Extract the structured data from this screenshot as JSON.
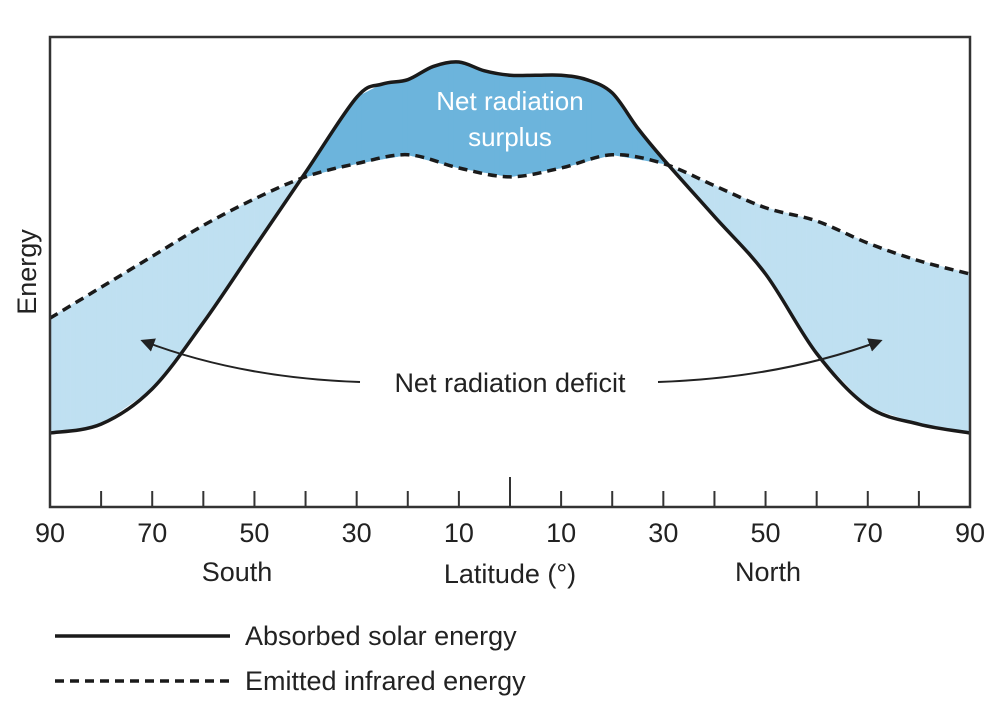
{
  "colors": {
    "surplus_fill": "#6cb4dc",
    "deficit_fill": "#bfe0f1",
    "line": "#1a1a1a",
    "frame": "#333333",
    "surplus_text": "#ffffff"
  },
  "chart_data": {
    "type": "line",
    "title": "",
    "xlabel": "Latitude (°)",
    "ylabel": "Energy",
    "x_tick_labels": [
      "90",
      "70",
      "50",
      "30",
      "10",
      "10",
      "30",
      "50",
      "70",
      "90"
    ],
    "x_region_labels": {
      "south": "South",
      "north": "North"
    },
    "xlim": [
      -90,
      90
    ],
    "ylim": [
      0,
      100
    ],
    "grid": false,
    "legend_placement": "bottom-left",
    "series": [
      {
        "name": "Absorbed solar energy",
        "style": "solid",
        "x": [
          -90,
          -80,
          -70,
          -60,
          -50,
          -40,
          -30,
          -25,
          -20,
          -15,
          -10,
          -5,
          0,
          5,
          10,
          15,
          20,
          25,
          30,
          40,
          50,
          60,
          70,
          80,
          90
        ],
        "y": [
          16,
          18,
          26,
          41,
          58,
          75,
          92,
          95,
          96,
          99,
          100,
          98,
          97,
          97,
          97,
          96,
          93,
          85,
          78,
          65,
          52,
          34,
          22,
          18,
          16
        ]
      },
      {
        "name": "Emitted infrared energy",
        "style": "dashed",
        "x": [
          -90,
          -80,
          -70,
          -60,
          -50,
          -40,
          -30,
          -20,
          -10,
          0,
          10,
          20,
          30,
          40,
          50,
          60,
          70,
          80,
          90
        ],
        "y": [
          42,
          49,
          56,
          63,
          69,
          74,
          77,
          79,
          76,
          74,
          76,
          79,
          77,
          72,
          67,
          64,
          59,
          55,
          52
        ]
      }
    ],
    "annotations": [
      {
        "text_lines": [
          "Net radiation",
          "surplus"
        ],
        "region": "surplus"
      },
      {
        "text": "Net radiation deficit",
        "region": "deficit"
      }
    ]
  }
}
